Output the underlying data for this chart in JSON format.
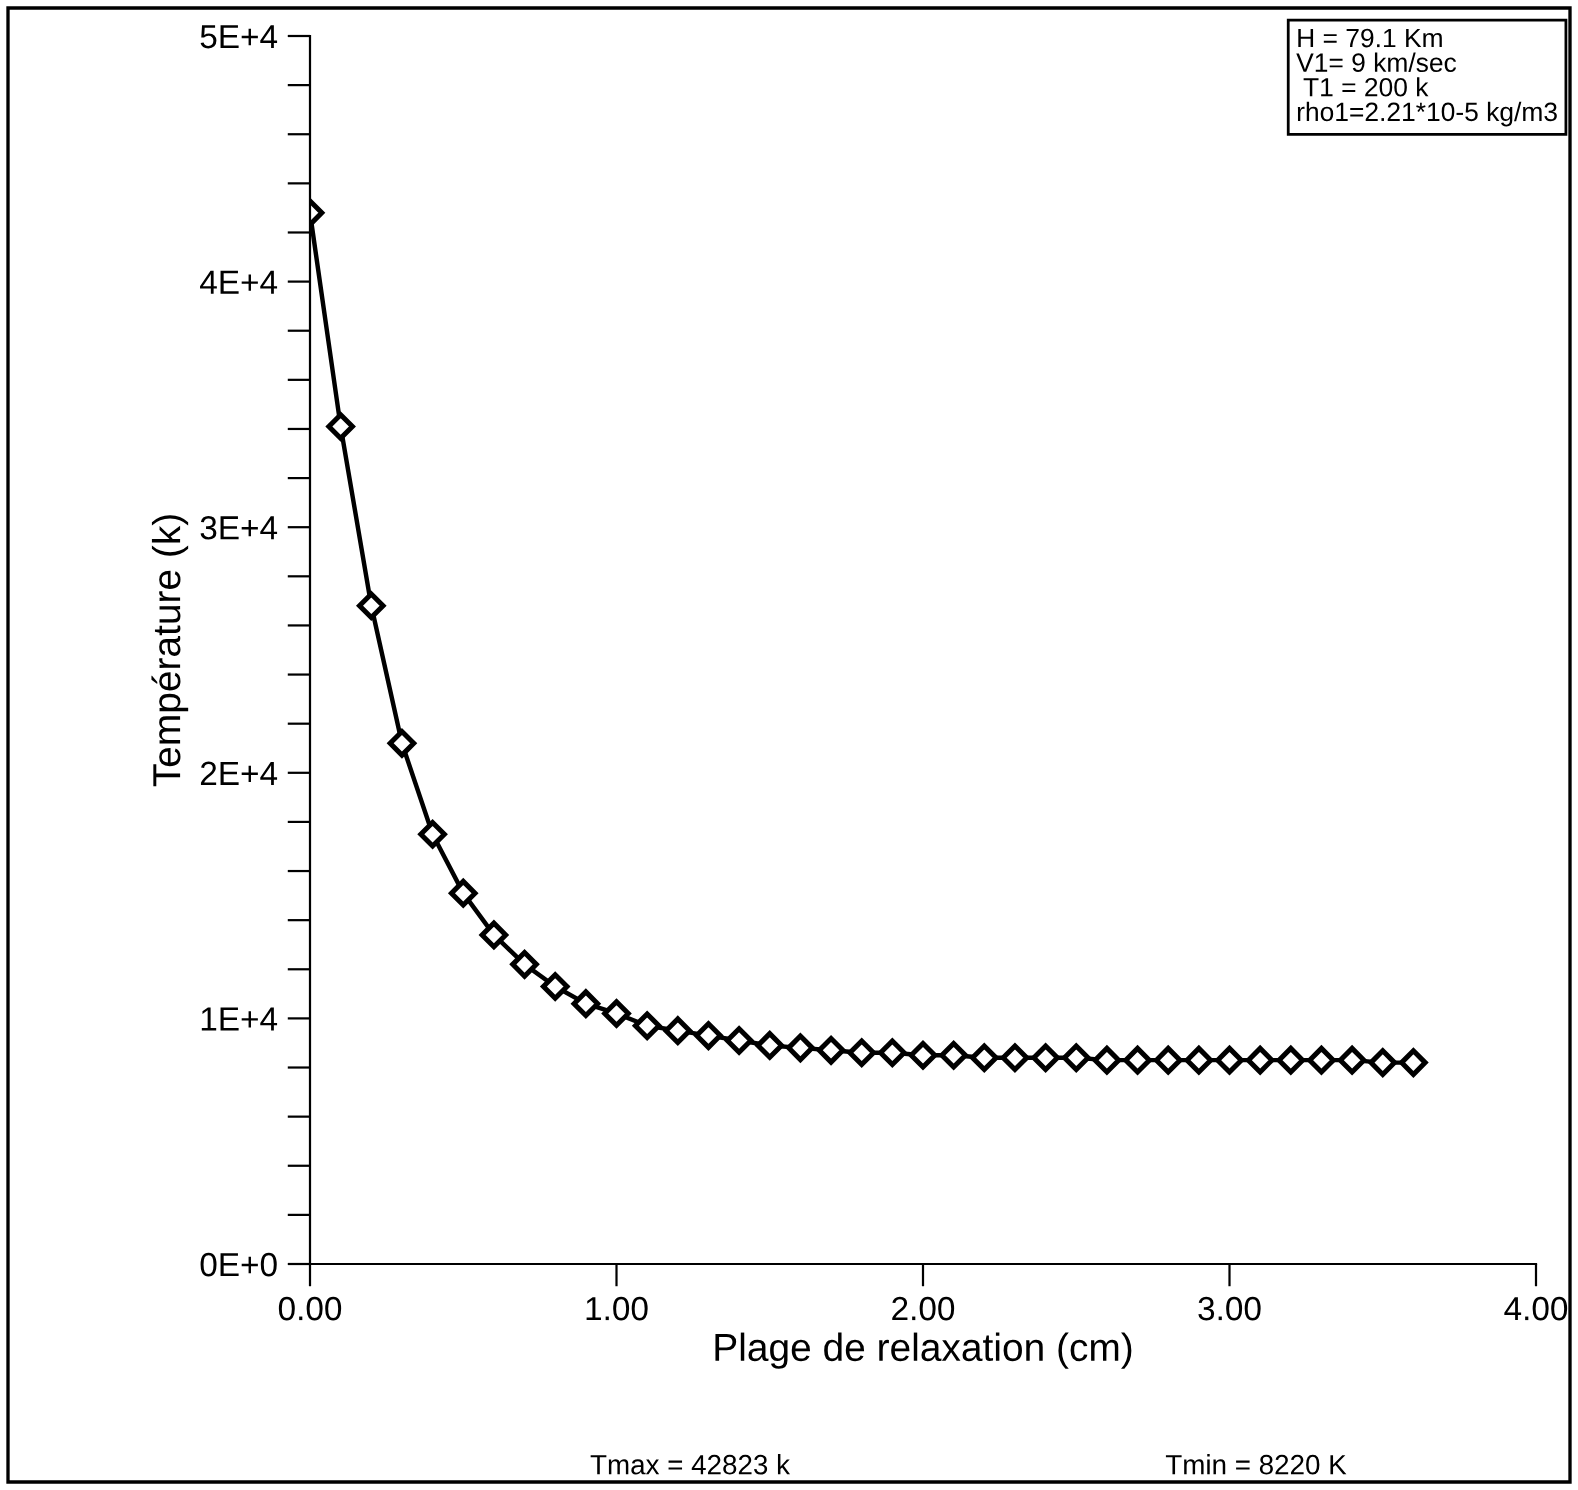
{
  "chart_data": {
    "type": "line",
    "xlabel": "Plage de relaxation (cm)",
    "ylabel": "Température (k)",
    "x": [
      0,
      0.1,
      0.2,
      0.3,
      0.4,
      0.5,
      0.6,
      0.7,
      0.8,
      0.9,
      1.0,
      1.1,
      1.2,
      1.3,
      1.4,
      1.5,
      1.6,
      1.7,
      1.8,
      1.9,
      2.0,
      2.1,
      2.2,
      2.3,
      2.4,
      2.5,
      2.6,
      2.7,
      2.8,
      2.9,
      3.0,
      3.1,
      3.2,
      3.3,
      3.4,
      3.5,
      3.6
    ],
    "series": [
      {
        "color": "#000000",
        "values": [
          42800,
          34100,
          26800,
          21200,
          17500,
          15100,
          13400,
          12200,
          11300,
          10600,
          10200,
          9700,
          9500,
          9300,
          9100,
          8900,
          8800,
          8700,
          8600,
          8600,
          8500,
          8500,
          8400,
          8400,
          8400,
          8400,
          8300,
          8300,
          8300,
          8300,
          8300,
          8300,
          8300,
          8300,
          8300,
          8200,
          8200
        ]
      }
    ],
    "marker": "diamond",
    "line_style": "solid",
    "grid": false,
    "legend": false,
    "xlim": [
      0,
      4
    ],
    "xticks": [
      {
        "value": 0,
        "label": "0.00"
      },
      {
        "value": 1,
        "label": "1.00"
      },
      {
        "value": 2,
        "label": "2.00"
      },
      {
        "value": 3,
        "label": "3.00"
      },
      {
        "value": 4,
        "label": "4.00"
      }
    ],
    "ylim": [
      0,
      50000
    ],
    "yticks": [
      {
        "value": 0,
        "label": "0E+0"
      },
      {
        "value": 2000,
        "label": null
      },
      {
        "value": 4000,
        "label": null
      },
      {
        "value": 6000,
        "label": null
      },
      {
        "value": 8000,
        "label": null
      },
      {
        "value": 10000,
        "label": "1E+4"
      },
      {
        "value": 12000,
        "label": null
      },
      {
        "value": 14000,
        "label": null
      },
      {
        "value": 16000,
        "label": null
      },
      {
        "value": 18000,
        "label": null
      },
      {
        "value": 20000,
        "label": "2E+4"
      },
      {
        "value": 22000,
        "label": null
      },
      {
        "value": 24000,
        "label": null
      },
      {
        "value": 26000,
        "label": null
      },
      {
        "value": 28000,
        "label": null
      },
      {
        "value": 30000,
        "label": "3E+4"
      },
      {
        "value": 32000,
        "label": null
      },
      {
        "value": 34000,
        "label": null
      },
      {
        "value": 36000,
        "label": null
      },
      {
        "value": 38000,
        "label": null
      },
      {
        "value": 40000,
        "label": "4E+4"
      },
      {
        "value": 42000,
        "label": null
      },
      {
        "value": 44000,
        "label": null
      },
      {
        "value": 46000,
        "label": null
      },
      {
        "value": 48000,
        "label": null
      },
      {
        "value": 50000,
        "label": "5E+4"
      }
    ],
    "annotations": [
      "H = 79.1 Km\nV1= 9 km/sec\n T1 = 200 k\nrho1=2.21*10-5 kg/m3",
      "Tmax = 42823 k",
      "Tmin = 8220 K"
    ]
  }
}
